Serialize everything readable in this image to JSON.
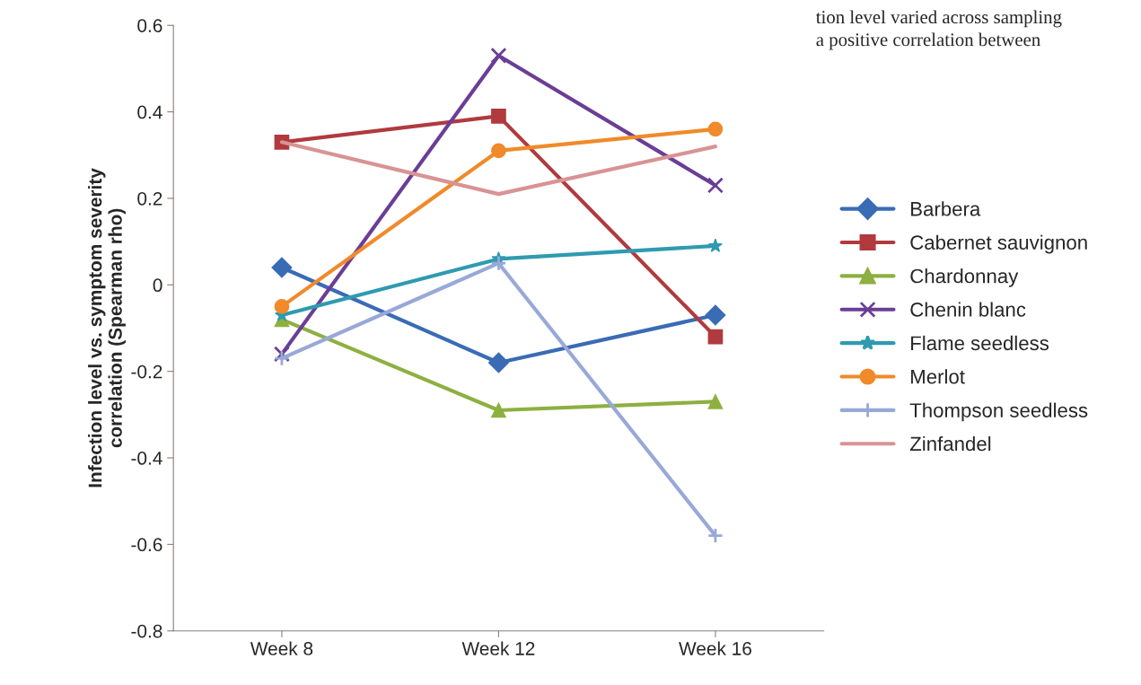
{
  "chart_data": {
    "type": "line",
    "ylabel": "Infection level vs. symptom severity\ncorrelation (Spearman rho)",
    "categories": [
      "Week 8",
      "Week 12",
      "Week 16"
    ],
    "series": [
      {
        "name": "Barbera",
        "color": "#3a6bb5",
        "marker": "diamond",
        "values": [
          0.04,
          -0.18,
          -0.07
        ]
      },
      {
        "name": "Cabernet sauvignon",
        "color": "#b03a3e",
        "marker": "square",
        "values": [
          0.33,
          0.39,
          -0.12
        ]
      },
      {
        "name": "Chardonnay",
        "color": "#8db040",
        "marker": "triangle",
        "values": [
          -0.08,
          -0.29,
          -0.27
        ]
      },
      {
        "name": "Chenin blanc",
        "color": "#6a3e96",
        "marker": "cross",
        "values": [
          -0.16,
          0.53,
          0.23
        ]
      },
      {
        "name": "Flame seedless",
        "color": "#2f9ab0",
        "marker": "star",
        "values": [
          -0.07,
          0.06,
          0.09
        ]
      },
      {
        "name": "Merlot",
        "color": "#f08a2a",
        "marker": "circle",
        "values": [
          -0.05,
          0.31,
          0.36
        ]
      },
      {
        "name": "Thompson seedless",
        "color": "#98a8d8",
        "marker": "plus",
        "values": [
          -0.17,
          0.05,
          -0.58
        ]
      },
      {
        "name": "Zinfandel",
        "color": "#d99394",
        "marker": "none",
        "values": [
          0.33,
          0.21,
          0.32
        ]
      }
    ],
    "ylim": [
      -0.8,
      0.6
    ],
    "yticks": [
      {
        "value": -0.8,
        "label": "-0.8"
      },
      {
        "value": -0.6,
        "label": "-0.6"
      },
      {
        "value": -0.4,
        "label": "-0.4"
      },
      {
        "value": -0.2,
        "label": "-0.2"
      },
      0,
      0.2,
      0.4,
      0.6
    ],
    "grid": false,
    "legend": "right",
    "annotations": [
      "tion level varied across sampling",
      "a positive correlation between"
    ]
  }
}
